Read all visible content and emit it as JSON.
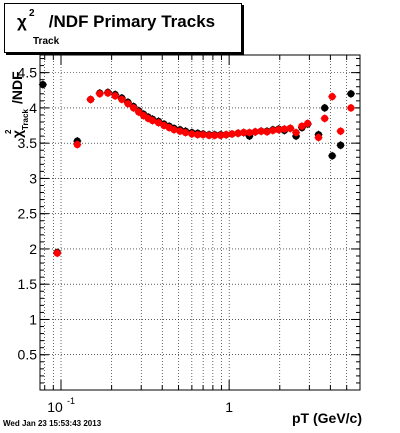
{
  "chart_data": {
    "type": "scatter",
    "title_parts": {
      "chi": "χ",
      "sup": "2",
      "sub": "Track",
      "rest": "/NDF  Primary Tracks"
    },
    "xlabel": "pT (GeV/c)",
    "ylabel_parts": {
      "chi": "χ",
      "sup": "2",
      "sub": "Track",
      "rest": "/NDF"
    },
    "x_scale": "log",
    "xlim": [
      0.075,
      6.0
    ],
    "ylim": [
      0,
      4.75
    ],
    "x_tick_labels": [
      {
        "value": 0.1,
        "base": "10",
        "exp": "-1"
      },
      {
        "value": 1,
        "base": "1",
        "exp": ""
      }
    ],
    "y_ticks": [
      0,
      0.5,
      1,
      1.5,
      2,
      2.5,
      3,
      3.5,
      4,
      4.5
    ],
    "y_tick_labels": [
      "0.5",
      "1",
      "1.5",
      "2",
      "2.5",
      "3",
      "3.5",
      "4",
      "4.5"
    ],
    "grid": true,
    "series": [
      {
        "color": "#000000",
        "points": [
          [
            0.078,
            4.33
          ],
          [
            0.095,
            1.95
          ],
          [
            0.125,
            3.53
          ],
          [
            0.15,
            4.12
          ],
          [
            0.17,
            4.21
          ],
          [
            0.19,
            4.22
          ],
          [
            0.21,
            4.19
          ],
          [
            0.23,
            4.14
          ],
          [
            0.25,
            4.08
          ],
          [
            0.27,
            4.02
          ],
          [
            0.29,
            3.96
          ],
          [
            0.31,
            3.91
          ],
          [
            0.33,
            3.87
          ],
          [
            0.35,
            3.84
          ],
          [
            0.38,
            3.81
          ],
          [
            0.41,
            3.77
          ],
          [
            0.44,
            3.74
          ],
          [
            0.47,
            3.71
          ],
          [
            0.51,
            3.69
          ],
          [
            0.55,
            3.67
          ],
          [
            0.6,
            3.65
          ],
          [
            0.65,
            3.64
          ],
          [
            0.7,
            3.63
          ],
          [
            0.76,
            3.62
          ],
          [
            0.82,
            3.62
          ],
          [
            0.89,
            3.62
          ],
          [
            0.96,
            3.62
          ],
          [
            1.04,
            3.63
          ],
          [
            1.13,
            3.64
          ],
          [
            1.22,
            3.65
          ],
          [
            1.32,
            3.6
          ],
          [
            1.43,
            3.66
          ],
          [
            1.55,
            3.67
          ],
          [
            1.68,
            3.67
          ],
          [
            1.82,
            3.69
          ],
          [
            1.97,
            3.7
          ],
          [
            2.13,
            3.68
          ],
          [
            2.31,
            3.71
          ],
          [
            2.5,
            3.6
          ],
          [
            2.71,
            3.72
          ],
          [
            2.93,
            3.77
          ],
          [
            3.4,
            3.62
          ],
          [
            3.7,
            4.0
          ],
          [
            4.1,
            3.32
          ],
          [
            4.6,
            3.47
          ],
          [
            5.3,
            4.2
          ]
        ]
      },
      {
        "color": "#ff0000",
        "points": [
          [
            0.095,
            1.94
          ],
          [
            0.125,
            3.48
          ],
          [
            0.15,
            4.12
          ],
          [
            0.17,
            4.2
          ],
          [
            0.19,
            4.21
          ],
          [
            0.21,
            4.17
          ],
          [
            0.23,
            4.12
          ],
          [
            0.25,
            4.06
          ],
          [
            0.27,
            4.0
          ],
          [
            0.29,
            3.94
          ],
          [
            0.31,
            3.89
          ],
          [
            0.33,
            3.85
          ],
          [
            0.35,
            3.82
          ],
          [
            0.38,
            3.79
          ],
          [
            0.41,
            3.75
          ],
          [
            0.44,
            3.72
          ],
          [
            0.47,
            3.69
          ],
          [
            0.51,
            3.67
          ],
          [
            0.55,
            3.65
          ],
          [
            0.6,
            3.63
          ],
          [
            0.65,
            3.62
          ],
          [
            0.7,
            3.62
          ],
          [
            0.76,
            3.61
          ],
          [
            0.82,
            3.61
          ],
          [
            0.89,
            3.61
          ],
          [
            0.96,
            3.62
          ],
          [
            1.04,
            3.63
          ],
          [
            1.13,
            3.64
          ],
          [
            1.22,
            3.65
          ],
          [
            1.32,
            3.65
          ],
          [
            1.43,
            3.66
          ],
          [
            1.55,
            3.67
          ],
          [
            1.68,
            3.66
          ],
          [
            1.82,
            3.68
          ],
          [
            1.97,
            3.69
          ],
          [
            2.13,
            3.7
          ],
          [
            2.31,
            3.71
          ],
          [
            2.5,
            3.65
          ],
          [
            2.71,
            3.74
          ],
          [
            2.93,
            3.78
          ],
          [
            3.4,
            3.58
          ],
          [
            3.7,
            3.85
          ],
          [
            4.1,
            4.16
          ],
          [
            4.6,
            3.67
          ],
          [
            5.3,
            4.0
          ]
        ]
      }
    ]
  },
  "timestamp": "Wed Jan 23 15:53:43 2013"
}
